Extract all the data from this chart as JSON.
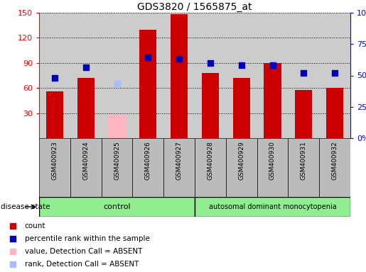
{
  "title": "GDS3820 / 1565875_at",
  "samples": [
    "GSM400923",
    "GSM400924",
    "GSM400925",
    "GSM400926",
    "GSM400927",
    "GSM400928",
    "GSM400929",
    "GSM400930",
    "GSM400931",
    "GSM400932"
  ],
  "count_values": [
    56,
    72,
    null,
    130,
    148,
    78,
    72,
    90,
    58,
    60
  ],
  "count_absent": [
    null,
    null,
    28,
    null,
    null,
    null,
    null,
    null,
    null,
    null
  ],
  "rank_values_left": [
    72,
    85,
    null,
    97,
    95,
    90,
    87,
    87,
    78,
    78
  ],
  "rank_absent_left": [
    null,
    null,
    65,
    null,
    null,
    null,
    null,
    null,
    null,
    null
  ],
  "ylim_left": [
    0,
    150
  ],
  "ylim_right": [
    0,
    100
  ],
  "yticks_left": [
    30,
    60,
    90,
    120,
    150
  ],
  "yticks_right": [
    0,
    25,
    50,
    75,
    100
  ],
  "ytick_labels_right": [
    "0%",
    "25%",
    "50%",
    "75%",
    "100%"
  ],
  "control_label": "control",
  "disease_label": "autosomal dominant monocytopenia",
  "n_control": 5,
  "n_disease": 5,
  "bar_color": "#CC0000",
  "bar_absent_color": "#FFB6C1",
  "dot_color": "#0000BB",
  "dot_absent_color": "#AABBFF",
  "bar_width": 0.55,
  "dot_size": 28,
  "legend_items": [
    {
      "label": "count",
      "color": "#CC0000"
    },
    {
      "label": "percentile rank within the sample",
      "color": "#0000BB"
    },
    {
      "label": "value, Detection Call = ABSENT",
      "color": "#FFB6C1"
    },
    {
      "label": "rank, Detection Call = ABSENT",
      "color": "#AABBFF"
    }
  ],
  "disease_state_label": "disease state",
  "background_color": "#FFFFFF",
  "plot_bg_color": "#CCCCCC",
  "label_bg_color": "#BBBBBB",
  "control_bg": "#90EE90",
  "disease_bg": "#90EE90"
}
